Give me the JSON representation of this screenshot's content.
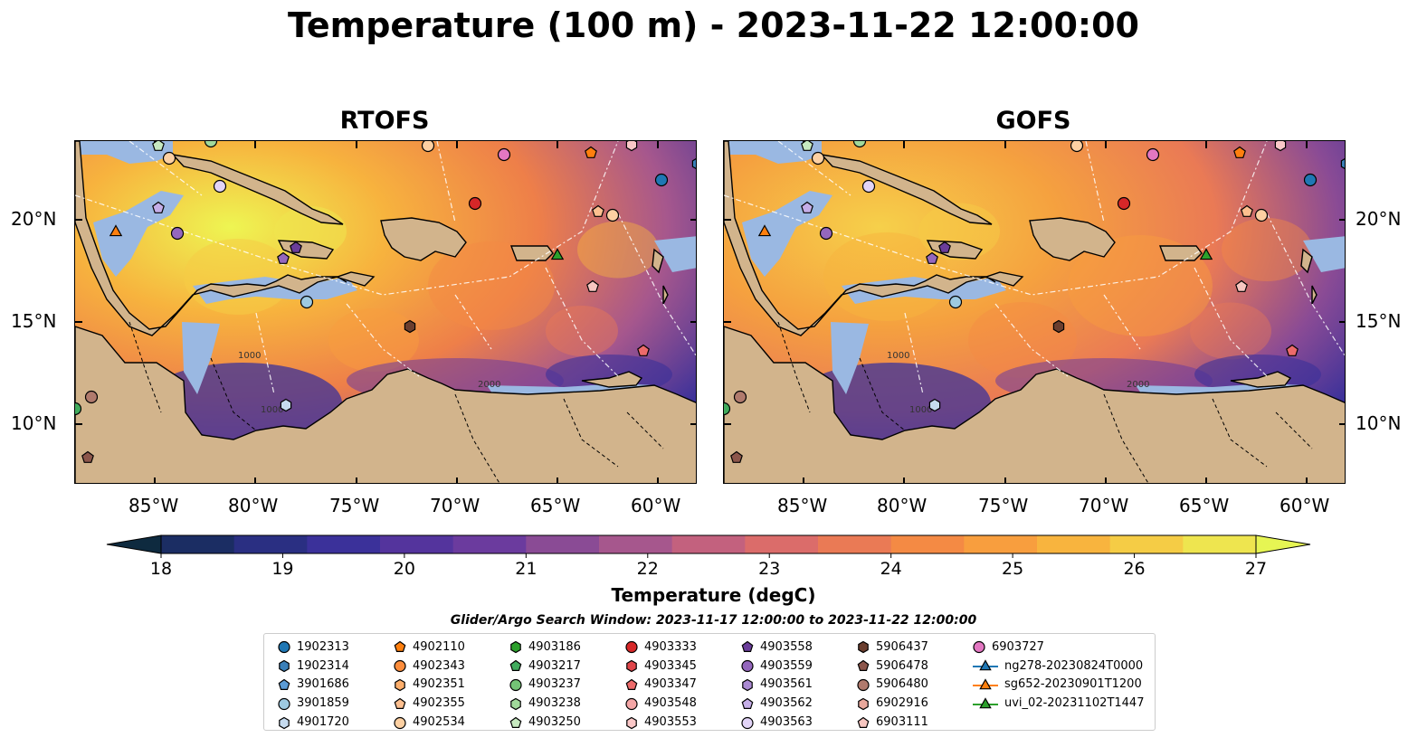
{
  "title": "Temperature (100 m) - 2023-11-22 12:00:00",
  "panels": [
    {
      "title": "RTOFS"
    },
    {
      "title": "GOFS"
    }
  ],
  "axes": {
    "lat_labels": [
      "20°N",
      "15°N",
      "10°N"
    ],
    "lon_labels": [
      "85°W",
      "80°W",
      "75°W",
      "70°W",
      "65°W",
      "60°W"
    ]
  },
  "contour_labels": [
    "1000",
    "1000",
    "2000"
  ],
  "colorbar": {
    "label": "Temperature (degC)",
    "ticks": [
      "18",
      "19",
      "20",
      "21",
      "22",
      "23",
      "24",
      "25",
      "26",
      "27"
    ],
    "colors": [
      "#0e2a3f",
      "#1b2d63",
      "#2a2f82",
      "#3b319a",
      "#54349d",
      "#6b3b9e",
      "#8a4b95",
      "#a6578d",
      "#c3617e",
      "#db6c6a",
      "#ea7a55",
      "#f48a44",
      "#f89e3e",
      "#f8b43e",
      "#f5cc45",
      "#eee54f",
      "#e6f553"
    ]
  },
  "search_window": "Glider/Argo Search Window: 2023-11-17 12:00:00 to 2023-11-22 12:00:00",
  "legend": [
    {
      "label": "1902313",
      "marker": "circle",
      "color": "#1f77b4"
    },
    {
      "label": "1902314",
      "marker": "hexagon",
      "color": "#3a7fb8"
    },
    {
      "label": "3901686",
      "marker": "pentagon",
      "color": "#5b9bd5"
    },
    {
      "label": "3901859",
      "marker": "circle",
      "color": "#9ecae1"
    },
    {
      "label": "4901720",
      "marker": "hexagon",
      "color": "#c6dbef"
    },
    {
      "label": "4902110",
      "marker": "pentagon",
      "color": "#ff7f0e"
    },
    {
      "label": "4902343",
      "marker": "circle",
      "color": "#fd8d3c"
    },
    {
      "label": "4902351",
      "marker": "hexagon",
      "color": "#fdae6b"
    },
    {
      "label": "4902355",
      "marker": "pentagon",
      "color": "#fdbf8f"
    },
    {
      "label": "4902534",
      "marker": "circle",
      "color": "#fdd0a2"
    },
    {
      "label": "4903186",
      "marker": "hexagon",
      "color": "#2ca02c"
    },
    {
      "label": "4903217",
      "marker": "pentagon",
      "color": "#41ab5d"
    },
    {
      "label": "4903237",
      "marker": "circle",
      "color": "#74c476"
    },
    {
      "label": "4903238",
      "marker": "hexagon",
      "color": "#a1d99b"
    },
    {
      "label": "4903250",
      "marker": "pentagon",
      "color": "#c7e9c0"
    },
    {
      "label": "4903333",
      "marker": "circle",
      "color": "#d62728"
    },
    {
      "label": "4903345",
      "marker": "hexagon",
      "color": "#e0454a"
    },
    {
      "label": "4903347",
      "marker": "pentagon",
      "color": "#ec6a6a"
    },
    {
      "label": "4903548",
      "marker": "circle",
      "color": "#f4a6a6"
    },
    {
      "label": "4903553",
      "marker": "hexagon",
      "color": "#fbc8c8"
    },
    {
      "label": "4903558",
      "marker": "pentagon",
      "color": "#6a3d9a"
    },
    {
      "label": "4903559",
      "marker": "circle",
      "color": "#9467bd"
    },
    {
      "label": "4903561",
      "marker": "hexagon",
      "color": "#ab8ad3"
    },
    {
      "label": "4903562",
      "marker": "pentagon",
      "color": "#c5aee8"
    },
    {
      "label": "4903563",
      "marker": "circle",
      "color": "#e2d4f7"
    },
    {
      "label": "5906437",
      "marker": "hexagon",
      "color": "#6b3e2e"
    },
    {
      "label": "5906478",
      "marker": "pentagon",
      "color": "#8c564b"
    },
    {
      "label": "5906480",
      "marker": "circle",
      "color": "#b07a6d"
    },
    {
      "label": "6902916",
      "marker": "hexagon",
      "color": "#e8a89c"
    },
    {
      "label": "6903111",
      "marker": "pentagon",
      "color": "#f7c6c0"
    },
    {
      "label": "6903727",
      "marker": "circle",
      "color": "#e377c2"
    },
    {
      "label": "ng278-20230824T0000",
      "marker": "triangle-line",
      "color": "#1f77b4"
    },
    {
      "label": "sg652-20230901T1200",
      "marker": "triangle-line",
      "color": "#ff7f0e"
    },
    {
      "label": "uvi_02-20231102T1447",
      "marker": "triangle-line",
      "color": "#2ca02c"
    }
  ]
}
